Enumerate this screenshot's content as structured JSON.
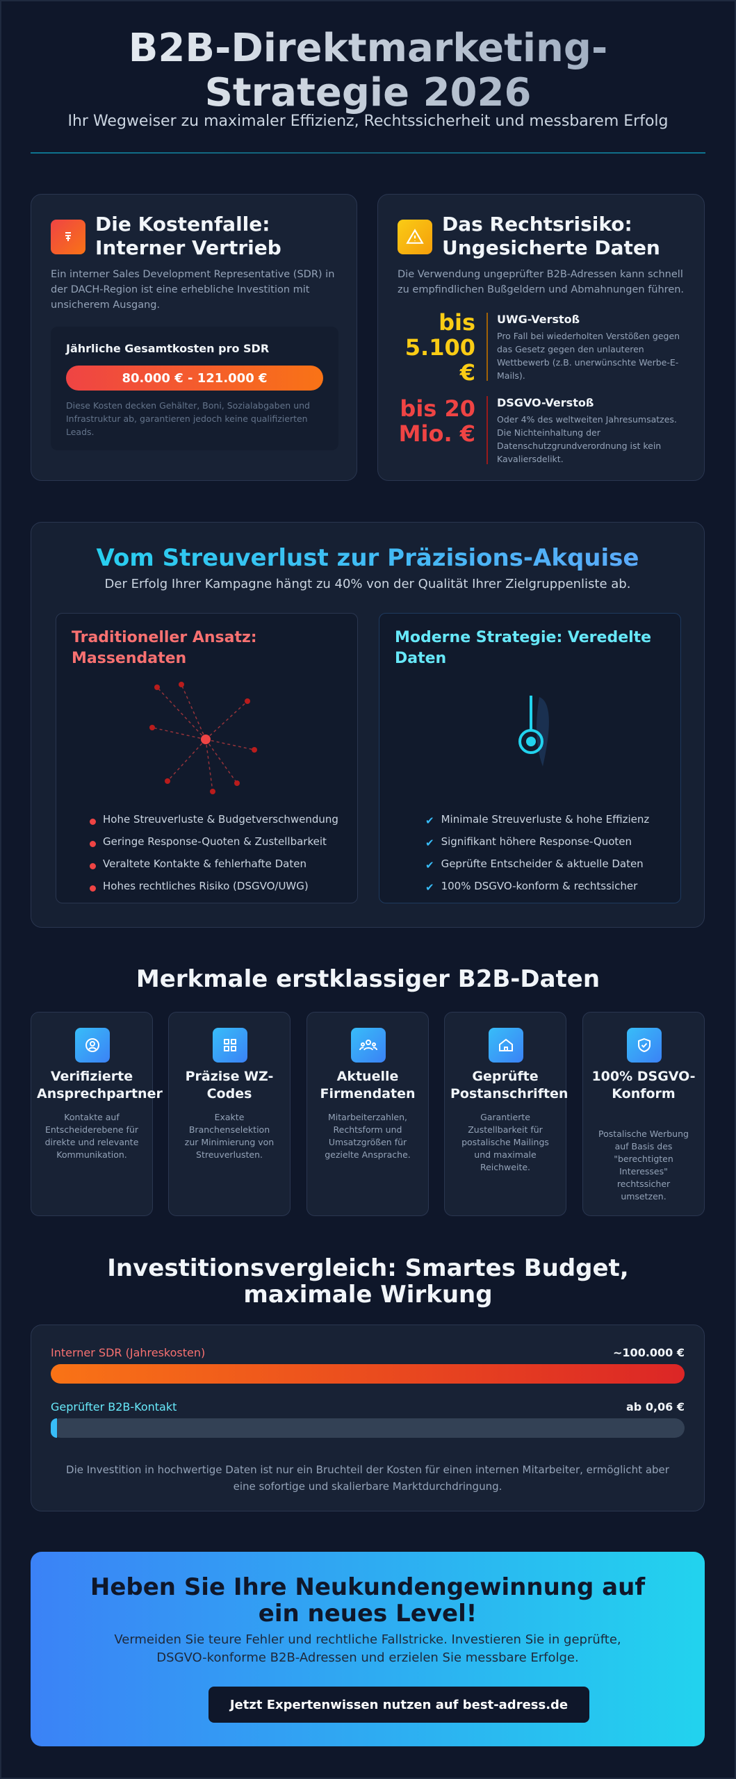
{
  "header": {
    "title": "B2B-Direktmarketing-Strategie 2026",
    "subtitle": "Ihr Wegweiser zu maximaler Effizienz, Rechtssicherheit und messbarem Erfolg"
  },
  "cost_card": {
    "title": "Die Kostenfalle: Interner Vertrieb",
    "text": "Ein interner Sales Development Representative (SDR) in der DACH-Region ist eine erhebliche Investition mit unsicherem Ausgang.",
    "box_title": "Jährliche Gesamtkosten pro SDR",
    "range": "80.000 € - 121.000 €",
    "note": "Diese Kosten decken Gehälter, Boni, Sozialabgaben und Infrastruktur ab, garantieren jedoch keine qualifizierten Leads."
  },
  "risk_card": {
    "title": "Das Rechtsrisiko: Ungesicherte Daten",
    "text": "Die Verwendung ungeprüfter B2B-Adressen kann schnell zu empfindlichen Bußgeldern und Abmahnungen führen.",
    "items": [
      {
        "amount": "bis 5.100 €",
        "title": "UWG-Verstoß",
        "text": "Pro Fall bei wiederholten Verstößen gegen das Gesetz gegen den unlauteren Wettbewerb (z.B. unerwünschte Werbe-E-Mails)."
      },
      {
        "amount": "bis 20 Mio. €",
        "title": "DSGVO-Verstoß",
        "text": "Oder 4% des weltweiten Jahresumsatzes. Die Nichteinhaltung der Datenschutzgrundverordnung ist kein Kavaliersdelikt."
      }
    ]
  },
  "comparison": {
    "title": "Vom Streuverlust zur Präzisions-Akquise",
    "subtitle": "Der Erfolg Ihrer Kampagne hängt zu 40% von der Qualität Ihrer Zielgruppenliste ab.",
    "traditional": {
      "title": "Traditioneller Ansatz: Massendaten",
      "points": [
        "Hohe Streuverluste & Budgetverschwendung",
        "Geringe Response-Quoten & Zustellbarkeit",
        "Veraltete Kontakte & fehlerhafte Daten",
        "Hohes rechtliches Risiko (DSGVO/UWG)"
      ]
    },
    "modern": {
      "title": "Moderne Strategie: Veredelte Daten",
      "points": [
        "Minimale Streuverluste & hohe Effizienz",
        "Signifikant höhere Response-Quoten",
        "Geprüfte Entscheider & aktuelle Daten",
        "100% DSGVO-konform & rechtssicher"
      ]
    }
  },
  "features": {
    "title": "Merkmale erstklassiger B2B-Daten",
    "items": [
      {
        "title": "Verifizierte Ansprechpartner",
        "text": "Kontakte auf Entscheiderebene für direkte und relevante Kommunikation."
      },
      {
        "title": "Präzise WZ-Codes",
        "text": "Exakte Branchenselektion zur Minimierung von Streuverlusten."
      },
      {
        "title": "Aktuelle Firmendaten",
        "text": "Mitarbeiterzahlen, Rechtsform und Umsatzgrößen für gezielte Ansprache."
      },
      {
        "title": "Geprüfte Postanschriften",
        "text": "Garantierte Zustellbarkeit für postalische Mailings und maximale Reichweite."
      },
      {
        "title": "100% DSGVO-Konform",
        "text": "Postalische Werbung auf Basis des \"berechtigten Interesses\" rechtssicher umsetzen."
      }
    ]
  },
  "investment": {
    "title": "Investitionsvergleich: Smartes Budget, maximale Wirkung",
    "rows": [
      {
        "label": "Interner SDR (Jahreskosten)",
        "value": "~100.000 €"
      },
      {
        "label": "Geprüfter B2B-Kontakt",
        "value": "ab 0,06 €"
      }
    ],
    "note": "Die Investition in hochwertige Daten ist nur ein Bruchteil der Kosten für einen internen Mitarbeiter, ermöglicht aber eine sofortige und skalierbare Marktdurchdringung."
  },
  "cta": {
    "title": "Heben Sie Ihre Neukundengewinnung auf ein neues Level!",
    "text": "Vermeiden Sie teure Fehler und rechtliche Fallstricke. Investieren Sie in geprüfte, DSGVO-konforme B2B-Adressen und erzielen Sie messbare Erfolge.",
    "button": "Jetzt Expertenwissen nutzen auf best-adress.de"
  }
}
